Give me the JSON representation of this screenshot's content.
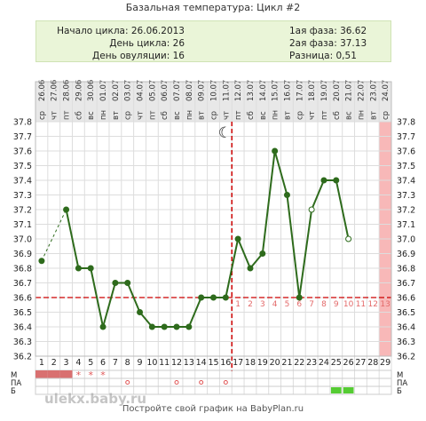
{
  "header": {
    "title": "Базальная температура: Цикл #2"
  },
  "info": {
    "cycle_start": "Начало цикла: 26.06.2013",
    "cycle_day": "День цикла: 26",
    "ovulation_day": "День овуляции: 16",
    "phase1": "1ая фаза: 36.62",
    "phase2": "2ая фаза: 37.13",
    "difference": "Разница: 0,51"
  },
  "footer": {
    "text": "Постройте свой график на BabyPlan.ru"
  },
  "watermark": "ulekx.baby.ru",
  "chart_data": {
    "type": "line",
    "days": [
      1,
      2,
      3,
      4,
      5,
      6,
      7,
      8,
      9,
      10,
      11,
      12,
      13,
      14,
      15,
      16,
      17,
      18,
      19,
      20,
      21,
      22,
      23,
      24,
      25,
      26,
      27,
      28,
      29
    ],
    "dates": [
      "26.06",
      "27.06",
      "28.06",
      "29.06",
      "30.06",
      "01.07",
      "02.07",
      "03.07",
      "04.07",
      "05.07",
      "06.07",
      "07.07",
      "08.07",
      "09.07",
      "10.07",
      "11.07",
      "12.07",
      "13.07",
      "14.07",
      "15.07",
      "16.07",
      "17.07",
      "18.07",
      "19.07",
      "20.07",
      "21.07",
      "22.07",
      "23.07",
      "24.07"
    ],
    "weekdays": [
      "ср",
      "чт",
      "пт",
      "сб",
      "вс",
      "пн",
      "вт",
      "ср",
      "чт",
      "пт",
      "сб",
      "вс",
      "пн",
      "вт",
      "ср",
      "чт",
      "пт",
      "сб",
      "вс",
      "пн",
      "вт",
      "ср",
      "чт",
      "пт",
      "сб",
      "вс",
      "пн",
      "вт",
      "ср"
    ],
    "ylim": [
      36.2,
      37.8
    ],
    "yticks": [
      "36.2",
      "36.3",
      "36.4",
      "36.5",
      "36.6",
      "36.7",
      "36.8",
      "36.9",
      "37.0",
      "37.1",
      "37.2",
      "37.3",
      "37.4",
      "37.5",
      "37.6",
      "37.7",
      "37.8"
    ],
    "temperatures": [
      36.85,
      null,
      37.2,
      36.8,
      36.8,
      36.4,
      36.7,
      36.7,
      36.5,
      36.4,
      36.4,
      36.4,
      36.4,
      36.6,
      36.6,
      36.6,
      37.0,
      36.8,
      36.9,
      37.6,
      37.3,
      36.6,
      37.2,
      37.4,
      37.4,
      37.0,
      null,
      null,
      null
    ],
    "open_points": [
      23,
      26
    ],
    "dashed_segments": [
      [
        1,
        3
      ]
    ],
    "coverline": 36.6,
    "ovulation_day": 16,
    "luteal_numbers": [
      "1",
      "2",
      "3",
      "4",
      "5",
      "6",
      "7",
      "8",
      "9",
      "10",
      "11",
      "12",
      "13"
    ],
    "luteal_start_day": 17,
    "highlight_day": 29,
    "moon_day": 16,
    "moon_symbol": "☾",
    "rows": [
      {
        "label": "М",
        "marks": {
          "1": "fill",
          "2": "fill",
          "3": "fill",
          "4": "*",
          "5": "*",
          "6": "*"
        }
      },
      {
        "label": "ПА",
        "marks": {
          "8": "o",
          "12": "o",
          "14": "o",
          "16": "o"
        }
      },
      {
        "label": "Б",
        "marks": {
          "25": "green",
          "26": "green"
        }
      }
    ],
    "colors": {
      "line": "#2e6b1c",
      "coverline": "#cc0000",
      "ovulation": "#cc0000",
      "grid": "#dddddd",
      "highlight": "#f8b8b8",
      "date_col": "#e8e8e8",
      "menstruation": "#d97070",
      "mark": "#e05555",
      "green": "#55cc33"
    }
  }
}
